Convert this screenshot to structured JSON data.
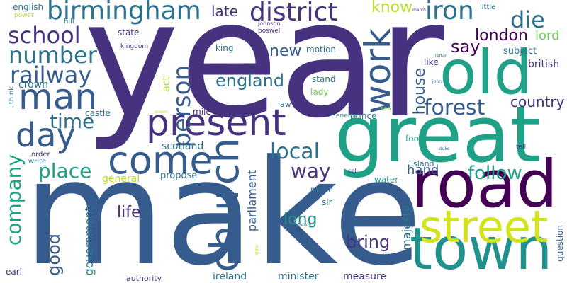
{
  "words": [
    {
      "text": "year",
      "color": "#46327e"
    },
    {
      "text": "make",
      "color": "#365c8d"
    },
    {
      "text": "great",
      "color": "#1fa187"
    },
    {
      "text": "road",
      "color": "#440154"
    },
    {
      "text": "old",
      "color": "#1fa187"
    },
    {
      "text": "town",
      "color": "#21918c"
    },
    {
      "text": "street",
      "color": "#d2e21b"
    },
    {
      "text": "church",
      "color": "#365c8d"
    },
    {
      "text": "present",
      "color": "#46327e"
    },
    {
      "text": "come",
      "color": "#365c8d"
    },
    {
      "text": "man",
      "color": "#365c8d"
    },
    {
      "text": "work",
      "color": "#365c8d"
    },
    {
      "text": "day",
      "color": "#365c8d"
    },
    {
      "text": "birmingham",
      "color": "#2c728e"
    },
    {
      "text": "district",
      "color": "#46327e"
    },
    {
      "text": "iron",
      "color": "#2c728e"
    },
    {
      "text": "school",
      "color": "#46327e"
    },
    {
      "text": "number",
      "color": "#2c728e"
    },
    {
      "text": "railway",
      "color": "#365c8d"
    },
    {
      "text": "person",
      "color": "#365c8d"
    },
    {
      "text": "die",
      "color": "#2c728e"
    },
    {
      "text": "forest",
      "color": "#365c8d"
    },
    {
      "text": "london",
      "color": "#440154"
    },
    {
      "text": "local",
      "color": "#2c728e"
    },
    {
      "text": "company",
      "color": "#1fa187"
    },
    {
      "text": "place",
      "color": "#1fa187"
    },
    {
      "text": "england",
      "color": "#2c728e"
    },
    {
      "text": "way",
      "color": "#46327e"
    },
    {
      "text": "follow",
      "color": "#1fa187"
    },
    {
      "text": "time",
      "color": "#2c728e"
    },
    {
      "text": "late",
      "color": "#46327e"
    },
    {
      "text": "know",
      "color": "#b5de2b"
    },
    {
      "text": "say",
      "color": "#440154"
    },
    {
      "text": "new",
      "color": "#365c8d"
    },
    {
      "text": "house",
      "color": "#365c8d"
    },
    {
      "text": "country",
      "color": "#46327e"
    },
    {
      "text": "lord",
      "color": "#6ece58"
    },
    {
      "text": "bring",
      "color": "#46327e"
    },
    {
      "text": "long",
      "color": "#21918c"
    },
    {
      "text": "good",
      "color": "#365c8d"
    },
    {
      "text": "life",
      "color": "#46327e"
    },
    {
      "text": "hand",
      "color": "#365c8d"
    },
    {
      "text": "english",
      "color": "#2c728e"
    },
    {
      "text": "majesty",
      "color": "#2c728e"
    },
    {
      "text": "parliament",
      "color": "#365c8d"
    },
    {
      "text": "government",
      "color": "#2c728e"
    },
    {
      "text": "british",
      "color": "#46327e"
    },
    {
      "text": "subject",
      "color": "#2c728e"
    },
    {
      "text": "crown",
      "color": "#2c728e"
    },
    {
      "text": "scotland",
      "color": "#2c728e"
    },
    {
      "text": "general",
      "color": "#b5de2b"
    },
    {
      "text": "propose",
      "color": "#2c728e"
    },
    {
      "text": "motion",
      "color": "#2c728e"
    },
    {
      "text": "king",
      "color": "#2c728e"
    },
    {
      "text": "state",
      "color": "#46327e"
    },
    {
      "text": "act",
      "color": "#b5de2b"
    },
    {
      "text": "mile",
      "color": "#46327e"
    },
    {
      "text": "castle",
      "color": "#2c728e"
    },
    {
      "text": "ireland",
      "color": "#2c728e"
    },
    {
      "text": "minister",
      "color": "#2c728e"
    },
    {
      "text": "measure",
      "color": "#46327e"
    },
    {
      "text": "question",
      "color": "#365c8d"
    },
    {
      "text": "authority",
      "color": "#46327e"
    },
    {
      "text": "earl",
      "color": "#46327e"
    },
    {
      "text": "water",
      "color": "#1fa187"
    },
    {
      "text": "sir",
      "color": "#2c728e"
    },
    {
      "text": "nation",
      "color": "#2c728e"
    },
    {
      "text": "prince",
      "color": "#2c728e"
    },
    {
      "text": "foot",
      "color": "#1fa187"
    },
    {
      "text": "island",
      "color": "#2c728e"
    },
    {
      "text": "law",
      "color": "#2c728e"
    },
    {
      "text": "stand",
      "color": "#2c728e"
    },
    {
      "text": "lady",
      "color": "#6ece58"
    },
    {
      "text": "like",
      "color": "#46327e"
    },
    {
      "text": "little",
      "color": "#2c728e"
    },
    {
      "text": "hill",
      "color": "#2c728e"
    },
    {
      "text": "power",
      "color": "#b5de2b"
    },
    {
      "text": "kingdom",
      "color": "#46327e"
    },
    {
      "text": "boswell",
      "color": "#46327e"
    },
    {
      "text": "johnson",
      "color": "#46327e"
    },
    {
      "text": "think",
      "color": "#2c728e"
    },
    {
      "text": "order",
      "color": "#46327e"
    },
    {
      "text": "write",
      "color": "#2c728e"
    },
    {
      "text": "enemy",
      "color": "#1fa187"
    },
    {
      "text": "sea",
      "color": "#6ece58"
    },
    {
      "text": "tell",
      "color": "#46327e"
    },
    {
      "text": "col",
      "color": "#46327e"
    },
    {
      "text": "queen",
      "color": "#b5de2b"
    },
    {
      "text": "john",
      "color": "#2c728e"
    },
    {
      "text": "letter",
      "color": "#2c728e"
    },
    {
      "text": "anne",
      "color": "#b5de2b"
    },
    {
      "text": "french",
      "color": "#2c728e"
    },
    {
      "text": "duke",
      "color": "#2c728e"
    },
    {
      "text": "march",
      "color": "#46327e"
    }
  ]
}
